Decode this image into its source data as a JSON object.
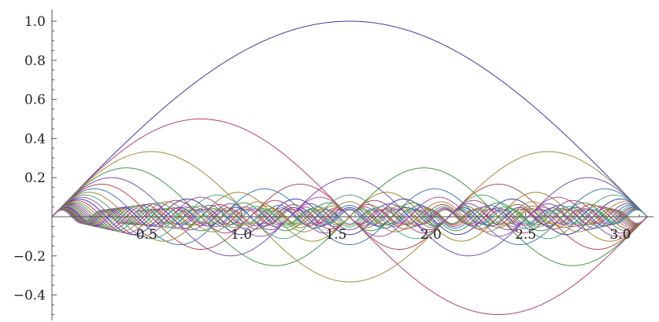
{
  "chart_data": {
    "type": "line",
    "title": "",
    "xlabel": "",
    "ylabel": "",
    "xlim": [
      0,
      3.1416
    ],
    "ylim": [
      -0.52,
      1.03
    ],
    "grid": false,
    "legend": "none",
    "x_ticks": [
      {
        "value": 0.5,
        "label": "0.5"
      },
      {
        "value": 1.0,
        "label": "1.0"
      },
      {
        "value": 1.5,
        "label": "1.5"
      },
      {
        "value": 2.0,
        "label": "2.0"
      },
      {
        "value": 2.5,
        "label": "2.5"
      },
      {
        "value": 3.0,
        "label": "3.0"
      }
    ],
    "y_ticks": [
      {
        "value": -0.4,
        "label": "−0.4"
      },
      {
        "value": -0.2,
        "label": "−0.2"
      },
      {
        "value": 0.2,
        "label": "0.2"
      },
      {
        "value": 0.4,
        "label": "0.4"
      },
      {
        "value": 0.6,
        "label": "0.6"
      },
      {
        "value": 0.8,
        "label": "0.8"
      },
      {
        "value": 1.0,
        "label": "1.0"
      }
    ],
    "series_family": {
      "formula": "sin(n*x)/n",
      "n_min": 1,
      "n_max": 30,
      "x_range": [
        0,
        3.1416
      ]
    },
    "palette": [
      "#3b3ba8",
      "#b3407a",
      "#a58b3e",
      "#3f9a3f",
      "#7a4fb8",
      "#b8494a",
      "#3e7ab8",
      "#9a8a2e",
      "#4fa87a",
      "#a84fa0"
    ]
  }
}
